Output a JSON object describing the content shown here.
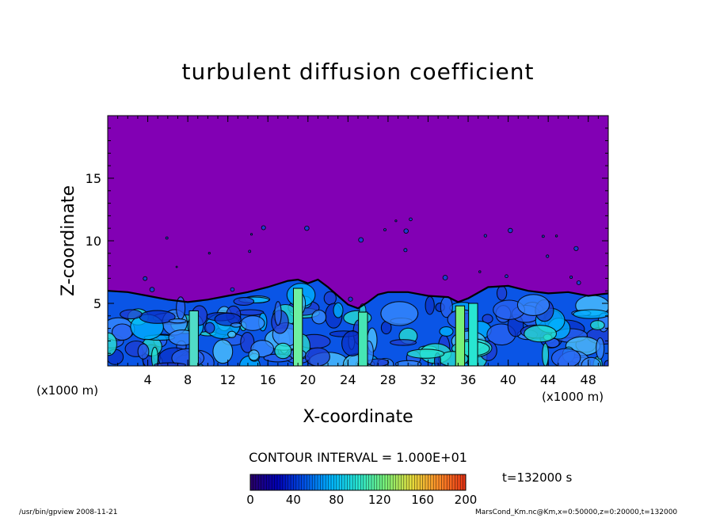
{
  "chart_data": {
    "type": "heatmap",
    "title": "turbulent diffusion coefficient",
    "xlabel": "X-coordinate",
    "ylabel": "Z-coordinate",
    "x_unit": "(x1000 m)",
    "xlim": [
      0,
      50
    ],
    "ylim": [
      0,
      20
    ],
    "x_ticks": [
      4,
      8,
      12,
      16,
      20,
      24,
      28,
      32,
      36,
      40,
      44,
      48
    ],
    "y_ticks": [
      5,
      10,
      15
    ],
    "colorbar": {
      "ticks": [
        0,
        40,
        80,
        120,
        160,
        200
      ],
      "range": [
        0,
        200
      ],
      "colors": [
        "#2a0068",
        "#0000b4",
        "#0050e6",
        "#00b4ff",
        "#28e6d2",
        "#78f078",
        "#e6dc3c",
        "#ff8c28",
        "#e63214"
      ]
    },
    "contour_interval": "CONTOUR INTERVAL = 1.000E+01",
    "time": "t=132000 s",
    "background_value_color": "#8200b4",
    "boundary_layer_top": [
      [
        0,
        6.0
      ],
      [
        2,
        5.9
      ],
      [
        4,
        5.6
      ],
      [
        6,
        5.3
      ],
      [
        8,
        5.1
      ],
      [
        10,
        5.3
      ],
      [
        12,
        5.6
      ],
      [
        14,
        5.9
      ],
      [
        16,
        6.3
      ],
      [
        18,
        6.8
      ],
      [
        19,
        6.9
      ],
      [
        20,
        6.6
      ],
      [
        21,
        6.9
      ],
      [
        22,
        6.3
      ],
      [
        23,
        5.6
      ],
      [
        24,
        4.9
      ],
      [
        25,
        4.6
      ],
      [
        26,
        5.1
      ],
      [
        27,
        5.7
      ],
      [
        28,
        5.9
      ],
      [
        30,
        5.9
      ],
      [
        32,
        5.6
      ],
      [
        34,
        5.5
      ],
      [
        35,
        5.1
      ],
      [
        36,
        5.4
      ],
      [
        38,
        6.3
      ],
      [
        40,
        6.4
      ],
      [
        42,
        6.0
      ],
      [
        44,
        5.8
      ],
      [
        46,
        5.9
      ],
      [
        48,
        5.6
      ],
      [
        50,
        5.8
      ]
    ]
  },
  "footer": {
    "program": "/usr/bin/gpview   2008-11-21",
    "dataset": "MarsCond_Km.nc@Km,x=0:50000,z=0:20000,t=132000"
  }
}
